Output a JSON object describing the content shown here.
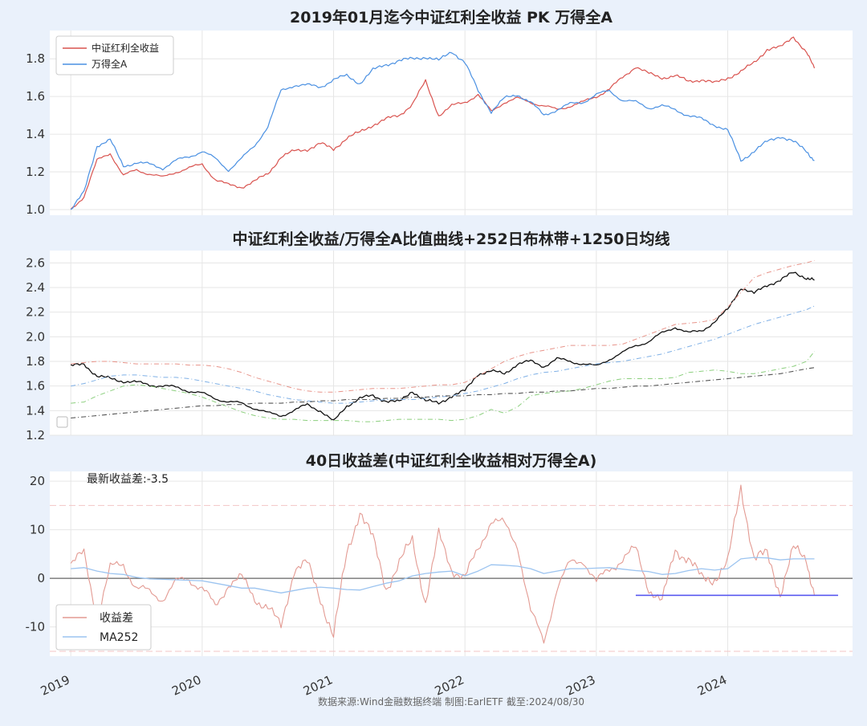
{
  "figure": {
    "source_note": "数据来源:Wind金融数据终端  制图:EarlETF 截至:2024/08/30",
    "x_tick_labels": [
      "2019",
      "2020",
      "2021",
      "2022",
      "2023",
      "2024"
    ]
  },
  "colors": {
    "dividend_line": "#d9534f",
    "wind_a_line": "#4a90e2",
    "ratio_line": "#111111",
    "upper_band": "#e8948a",
    "middle_band": "#7fb0e6",
    "lower_band": "#8ccf7e",
    "ma1250": "#555555",
    "spread_line": "#e39a92",
    "ma252_line": "#9cc4f0",
    "latest_line": "#5a5af0",
    "ref_dashed": "#f3c5c5"
  },
  "chart_data": [
    {
      "type": "line",
      "title": "2019年01月迄今中证红利全收益 PK 万得全A",
      "ylim": [
        0.97,
        1.95
      ],
      "yticks": [
        "1.0",
        "1.2",
        "1.4",
        "1.6",
        "1.8"
      ],
      "legend_position": "top-left",
      "grid": true,
      "x": [
        2019.0,
        2019.1,
        2019.2,
        2019.3,
        2019.4,
        2019.5,
        2019.6,
        2019.7,
        2019.8,
        2019.9,
        2020.0,
        2020.1,
        2020.2,
        2020.3,
        2020.4,
        2020.5,
        2020.6,
        2020.7,
        2020.8,
        2020.9,
        2021.0,
        2021.1,
        2021.2,
        2021.3,
        2021.4,
        2021.5,
        2021.6,
        2021.7,
        2021.8,
        2021.9,
        2022.0,
        2022.1,
        2022.2,
        2022.3,
        2022.4,
        2022.5,
        2022.6,
        2022.7,
        2022.8,
        2022.9,
        2023.0,
        2023.1,
        2023.2,
        2023.3,
        2023.4,
        2023.5,
        2023.6,
        2023.7,
        2023.8,
        2023.9,
        2024.0,
        2024.1,
        2024.2,
        2024.3,
        2024.4,
        2024.5,
        2024.6,
        2024.66
      ],
      "series": [
        {
          "name": "中证红利全收益",
          "values": [
            1.0,
            1.07,
            1.26,
            1.3,
            1.18,
            1.21,
            1.19,
            1.17,
            1.2,
            1.22,
            1.24,
            1.16,
            1.13,
            1.12,
            1.15,
            1.19,
            1.28,
            1.31,
            1.32,
            1.35,
            1.32,
            1.38,
            1.41,
            1.45,
            1.48,
            1.5,
            1.56,
            1.68,
            1.5,
            1.55,
            1.57,
            1.61,
            1.52,
            1.57,
            1.59,
            1.57,
            1.55,
            1.53,
            1.55,
            1.57,
            1.6,
            1.64,
            1.7,
            1.76,
            1.72,
            1.7,
            1.71,
            1.68,
            1.69,
            1.67,
            1.7,
            1.73,
            1.78,
            1.85,
            1.86,
            1.92,
            1.83,
            1.75
          ]
        },
        {
          "name": "万得全A",
          "values": [
            1.0,
            1.09,
            1.34,
            1.37,
            1.23,
            1.25,
            1.24,
            1.22,
            1.26,
            1.28,
            1.31,
            1.27,
            1.21,
            1.27,
            1.34,
            1.44,
            1.63,
            1.66,
            1.66,
            1.65,
            1.69,
            1.71,
            1.67,
            1.74,
            1.77,
            1.79,
            1.8,
            1.81,
            1.79,
            1.84,
            1.78,
            1.63,
            1.52,
            1.59,
            1.61,
            1.57,
            1.5,
            1.53,
            1.56,
            1.57,
            1.61,
            1.63,
            1.58,
            1.57,
            1.54,
            1.55,
            1.53,
            1.5,
            1.48,
            1.45,
            1.42,
            1.26,
            1.31,
            1.36,
            1.39,
            1.36,
            1.31,
            1.26
          ]
        }
      ]
    },
    {
      "type": "line",
      "title": "中证红利全收益/万得全A比值曲线+252日布林带+1250日均线",
      "ylim": [
        1.2,
        2.7
      ],
      "yticks": [
        "1.2",
        "1.4",
        "1.6",
        "1.8",
        "2.0",
        "2.2",
        "2.4",
        "2.6"
      ],
      "grid": true,
      "x": [
        2019.0,
        2019.1,
        2019.2,
        2019.3,
        2019.4,
        2019.5,
        2019.6,
        2019.7,
        2019.8,
        2019.9,
        2020.0,
        2020.1,
        2020.2,
        2020.3,
        2020.4,
        2020.5,
        2020.6,
        2020.7,
        2020.8,
        2020.9,
        2021.0,
        2021.1,
        2021.2,
        2021.3,
        2021.4,
        2021.5,
        2021.6,
        2021.7,
        2021.8,
        2021.9,
        2022.0,
        2022.1,
        2022.2,
        2022.3,
        2022.4,
        2022.5,
        2022.6,
        2022.7,
        2022.8,
        2022.9,
        2023.0,
        2023.1,
        2023.2,
        2023.3,
        2023.4,
        2023.5,
        2023.6,
        2023.7,
        2023.8,
        2023.9,
        2024.0,
        2024.1,
        2024.2,
        2024.3,
        2024.4,
        2024.5,
        2024.6,
        2024.66
      ],
      "series": [
        {
          "name": "",
          "values": [
            1.76,
            1.78,
            1.68,
            1.66,
            1.64,
            1.63,
            1.61,
            1.6,
            1.59,
            1.56,
            1.54,
            1.5,
            1.47,
            1.46,
            1.42,
            1.38,
            1.36,
            1.4,
            1.45,
            1.4,
            1.31,
            1.44,
            1.5,
            1.52,
            1.48,
            1.47,
            1.56,
            1.48,
            1.46,
            1.52,
            1.56,
            1.7,
            1.72,
            1.7,
            1.78,
            1.8,
            1.76,
            1.82,
            1.8,
            1.78,
            1.76,
            1.82,
            1.87,
            1.93,
            1.96,
            2.03,
            2.08,
            2.03,
            2.05,
            2.12,
            2.22,
            2.4,
            2.35,
            2.42,
            2.46,
            2.52,
            2.48,
            2.46
          ]
        },
        {
          "name": "",
          "values": [
            1.78,
            1.79,
            1.8,
            1.8,
            1.79,
            1.78,
            1.78,
            1.78,
            1.78,
            1.77,
            1.77,
            1.76,
            1.74,
            1.71,
            1.67,
            1.64,
            1.61,
            1.58,
            1.56,
            1.55,
            1.55,
            1.56,
            1.57,
            1.58,
            1.58,
            1.58,
            1.59,
            1.6,
            1.61,
            1.61,
            1.63,
            1.68,
            1.74,
            1.8,
            1.84,
            1.87,
            1.89,
            1.91,
            1.93,
            1.93,
            1.93,
            1.93,
            1.94,
            1.98,
            2.02,
            2.06,
            2.1,
            2.11,
            2.12,
            2.14,
            2.24,
            2.36,
            2.48,
            2.52,
            2.55,
            2.58,
            2.6,
            2.62
          ]
        },
        {
          "name": "",
          "values": [
            1.6,
            1.62,
            1.65,
            1.68,
            1.69,
            1.69,
            1.68,
            1.67,
            1.67,
            1.66,
            1.64,
            1.62,
            1.6,
            1.58,
            1.56,
            1.53,
            1.51,
            1.49,
            1.48,
            1.47,
            1.46,
            1.46,
            1.47,
            1.48,
            1.49,
            1.49,
            1.49,
            1.5,
            1.51,
            1.52,
            1.54,
            1.56,
            1.59,
            1.62,
            1.66,
            1.69,
            1.71,
            1.72,
            1.74,
            1.76,
            1.78,
            1.79,
            1.8,
            1.82,
            1.84,
            1.86,
            1.89,
            1.92,
            1.95,
            1.98,
            2.02,
            2.06,
            2.1,
            2.13,
            2.16,
            2.19,
            2.22,
            2.25
          ]
        },
        {
          "name": "",
          "values": [
            1.46,
            1.47,
            1.52,
            1.56,
            1.6,
            1.61,
            1.6,
            1.58,
            1.56,
            1.54,
            1.51,
            1.47,
            1.43,
            1.39,
            1.36,
            1.34,
            1.33,
            1.33,
            1.32,
            1.32,
            1.32,
            1.32,
            1.31,
            1.31,
            1.32,
            1.33,
            1.33,
            1.33,
            1.33,
            1.32,
            1.33,
            1.36,
            1.41,
            1.38,
            1.43,
            1.52,
            1.54,
            1.55,
            1.56,
            1.58,
            1.61,
            1.64,
            1.66,
            1.66,
            1.66,
            1.66,
            1.67,
            1.71,
            1.72,
            1.73,
            1.72,
            1.7,
            1.7,
            1.72,
            1.74,
            1.76,
            1.8,
            1.88
          ]
        },
        {
          "name": "",
          "values": [
            1.34,
            1.35,
            1.36,
            1.37,
            1.38,
            1.39,
            1.4,
            1.41,
            1.42,
            1.43,
            1.44,
            1.44,
            1.45,
            1.45,
            1.46,
            1.46,
            1.46,
            1.47,
            1.47,
            1.48,
            1.48,
            1.49,
            1.49,
            1.49,
            1.5,
            1.5,
            1.51,
            1.51,
            1.52,
            1.52,
            1.52,
            1.53,
            1.53,
            1.54,
            1.54,
            1.55,
            1.55,
            1.56,
            1.56,
            1.57,
            1.58,
            1.58,
            1.59,
            1.6,
            1.6,
            1.61,
            1.62,
            1.63,
            1.64,
            1.65,
            1.66,
            1.67,
            1.68,
            1.69,
            1.7,
            1.72,
            1.74,
            1.75
          ]
        }
      ]
    },
    {
      "type": "line",
      "title": "40日收益差(中证红利全收益相对万得全A)",
      "ylim": [
        -16,
        22
      ],
      "yticks": [
        "20",
        "10",
        "0",
        "-10"
      ],
      "annotation": "最新收益差:-3.5",
      "latest_value": -3.5,
      "latest_line_x": [
        2023.3,
        2024.84
      ],
      "reference_levels": [
        15,
        -15,
        0
      ],
      "legend_position": "bottom-left",
      "grid": true,
      "x": [
        2019.0,
        2019.1,
        2019.2,
        2019.3,
        2019.4,
        2019.5,
        2019.6,
        2019.7,
        2019.8,
        2019.9,
        2020.0,
        2020.1,
        2020.2,
        2020.3,
        2020.4,
        2020.5,
        2020.6,
        2020.7,
        2020.8,
        2020.9,
        2021.0,
        2021.1,
        2021.2,
        2021.3,
        2021.4,
        2021.5,
        2021.6,
        2021.7,
        2021.8,
        2021.9,
        2022.0,
        2022.1,
        2022.2,
        2022.3,
        2022.4,
        2022.5,
        2022.6,
        2022.7,
        2022.8,
        2022.9,
        2023.0,
        2023.1,
        2023.2,
        2023.3,
        2023.4,
        2023.5,
        2023.6,
        2023.7,
        2023.8,
        2023.9,
        2024.0,
        2024.1,
        2024.2,
        2024.3,
        2024.4,
        2024.5,
        2024.6,
        2024.66
      ],
      "series": [
        {
          "name": "收益差",
          "values": [
            3,
            5,
            -8,
            2,
            3,
            -2,
            -3,
            -4,
            -1,
            0,
            -2,
            -6,
            -1,
            0,
            -4,
            -6,
            -10,
            2,
            3,
            -4,
            -12,
            5,
            14,
            8,
            -2,
            3,
            8,
            -5,
            9,
            2,
            0,
            6,
            12,
            11,
            7,
            -7,
            -13,
            -2,
            3,
            4,
            -1,
            2,
            4,
            6,
            -2,
            -5,
            6,
            4,
            0,
            0,
            3,
            19,
            4,
            5,
            -3,
            6,
            4,
            -3.5
          ]
        },
        {
          "name": "MA252",
          "values": [
            2,
            2.2,
            1.5,
            1,
            0.8,
            0.2,
            -0.1,
            -0.2,
            -0.3,
            -0.4,
            -0.5,
            -1,
            -1.5,
            -2,
            -2,
            -2.5,
            -3,
            -2.5,
            -2,
            -1.8,
            -2,
            -2.3,
            -2.4,
            -1.7,
            -1,
            -0.5,
            0.5,
            1,
            1.3,
            1.5,
            0.5,
            1.5,
            2.8,
            2.7,
            2.5,
            2,
            1,
            1.5,
            2,
            2,
            2.1,
            2.2,
            1.9,
            1.6,
            1.4,
            0.8,
            1,
            1.6,
            2,
            1.7,
            2,
            4,
            4.3,
            4.2,
            3.8,
            4,
            4,
            4
          ]
        }
      ]
    }
  ]
}
